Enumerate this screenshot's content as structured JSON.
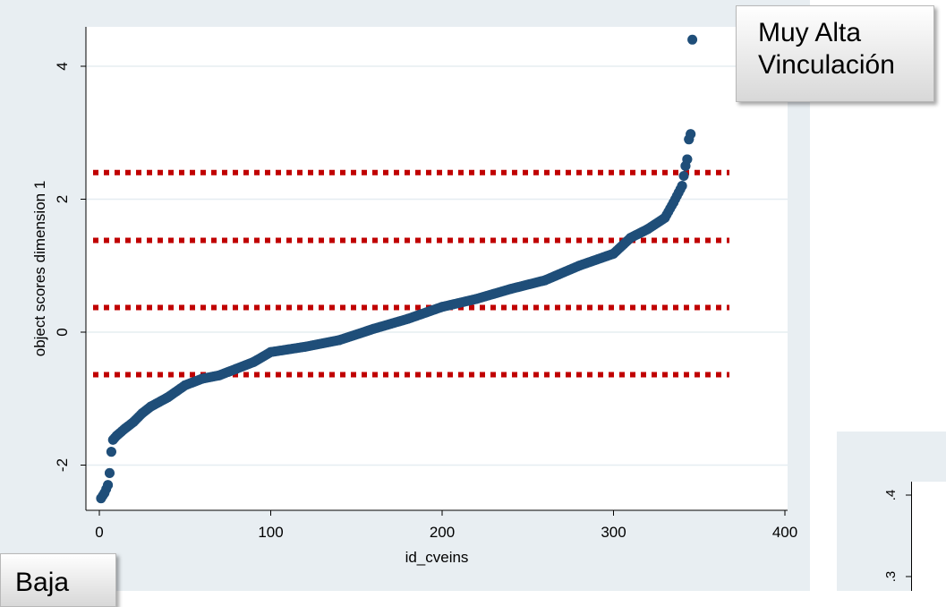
{
  "chart_data": {
    "type": "scatter",
    "xlabel": "id_cveins",
    "ylabel": "object scores dimension 1",
    "xlim": [
      -5,
      405
    ],
    "ylim": [
      -2.7,
      4.6
    ],
    "xticks": [
      0,
      100,
      200,
      300,
      400
    ],
    "yticks": [
      -2,
      0,
      2,
      4
    ],
    "grid": true,
    "point_color": "#1f4e79",
    "threshold_color": "#c00000",
    "thresholds": [
      2.4,
      1.38,
      0.37,
      -0.64
    ],
    "curve_keypoints": [
      {
        "x": 1,
        "y": -2.5
      },
      {
        "x": 3,
        "y": -2.42
      },
      {
        "x": 5,
        "y": -2.3
      },
      {
        "x": 6,
        "y": -2.12
      },
      {
        "x": 7,
        "y": -1.8
      },
      {
        "x": 8,
        "y": -1.62
      },
      {
        "x": 10,
        "y": -1.56
      },
      {
        "x": 15,
        "y": -1.45
      },
      {
        "x": 20,
        "y": -1.35
      },
      {
        "x": 25,
        "y": -1.22
      },
      {
        "x": 30,
        "y": -1.12
      },
      {
        "x": 40,
        "y": -0.98
      },
      {
        "x": 50,
        "y": -0.8
      },
      {
        "x": 60,
        "y": -0.7
      },
      {
        "x": 70,
        "y": -0.65
      },
      {
        "x": 80,
        "y": -0.55
      },
      {
        "x": 90,
        "y": -0.45
      },
      {
        "x": 100,
        "y": -0.3
      },
      {
        "x": 120,
        "y": -0.22
      },
      {
        "x": 140,
        "y": -0.12
      },
      {
        "x": 160,
        "y": 0.05
      },
      {
        "x": 180,
        "y": 0.2
      },
      {
        "x": 200,
        "y": 0.38
      },
      {
        "x": 220,
        "y": 0.5
      },
      {
        "x": 240,
        "y": 0.65
      },
      {
        "x": 260,
        "y": 0.78
      },
      {
        "x": 280,
        "y": 1.0
      },
      {
        "x": 300,
        "y": 1.18
      },
      {
        "x": 310,
        "y": 1.42
      },
      {
        "x": 320,
        "y": 1.55
      },
      {
        "x": 330,
        "y": 1.72
      },
      {
        "x": 335,
        "y": 1.95
      },
      {
        "x": 340,
        "y": 2.2
      },
      {
        "x": 342,
        "y": 2.5
      },
      {
        "x": 343,
        "y": 2.6
      },
      {
        "x": 344,
        "y": 2.9
      },
      {
        "x": 345,
        "y": 2.98
      },
      {
        "x": 346,
        "y": 4.4
      }
    ],
    "n_points": 346,
    "annotations": [
      "Muy Alta Vinculación",
      "Baja"
    ]
  },
  "callouts": {
    "high": {
      "line1": "Muy Alta",
      "line2": "Vinculación"
    },
    "low": {
      "line1": "Baja"
    }
  },
  "secondary_chart": {
    "ytick_labels": [
      ".4",
      ".3"
    ]
  }
}
